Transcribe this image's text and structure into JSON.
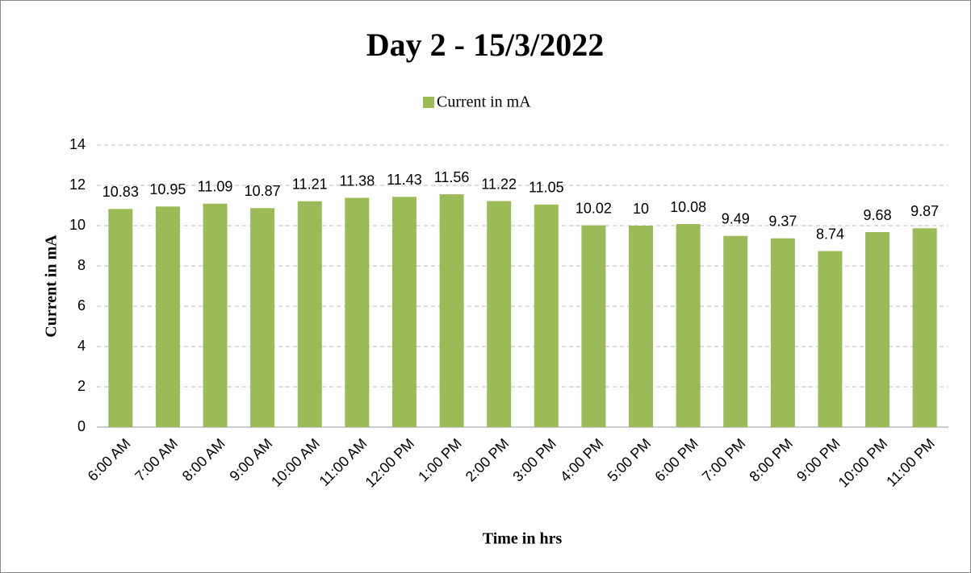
{
  "chart_data": {
    "type": "bar",
    "title": "Day 2 - 15/3/2022",
    "series": [
      {
        "name": "Current in mA",
        "color": "#9bbb59",
        "values": [
          10.83,
          10.95,
          11.09,
          10.87,
          11.21,
          11.38,
          11.43,
          11.56,
          11.22,
          11.05,
          10.02,
          10,
          10.08,
          9.49,
          9.37,
          8.74,
          9.68,
          9.87
        ]
      }
    ],
    "categories": [
      "6:00 AM",
      "7:00 AM",
      "8:00 AM",
      "9:00 AM",
      "10:00 AM",
      "11:00 AM",
      "12:00 PM",
      "1:00 PM",
      "2:00 PM",
      "3:00 PM",
      "4:00 PM",
      "5:00 PM",
      "6:00 PM",
      "7:00 PM",
      "8:00 PM",
      "9:00 PM",
      "10:00 PM",
      "11:00 PM"
    ],
    "x_label": "Time in hrs",
    "y_label": "Current in mA",
    "ylim": [
      0,
      14
    ],
    "yticks": [
      0,
      2,
      4,
      6,
      8,
      10,
      12,
      14
    ],
    "grid": true,
    "legend": "top"
  }
}
